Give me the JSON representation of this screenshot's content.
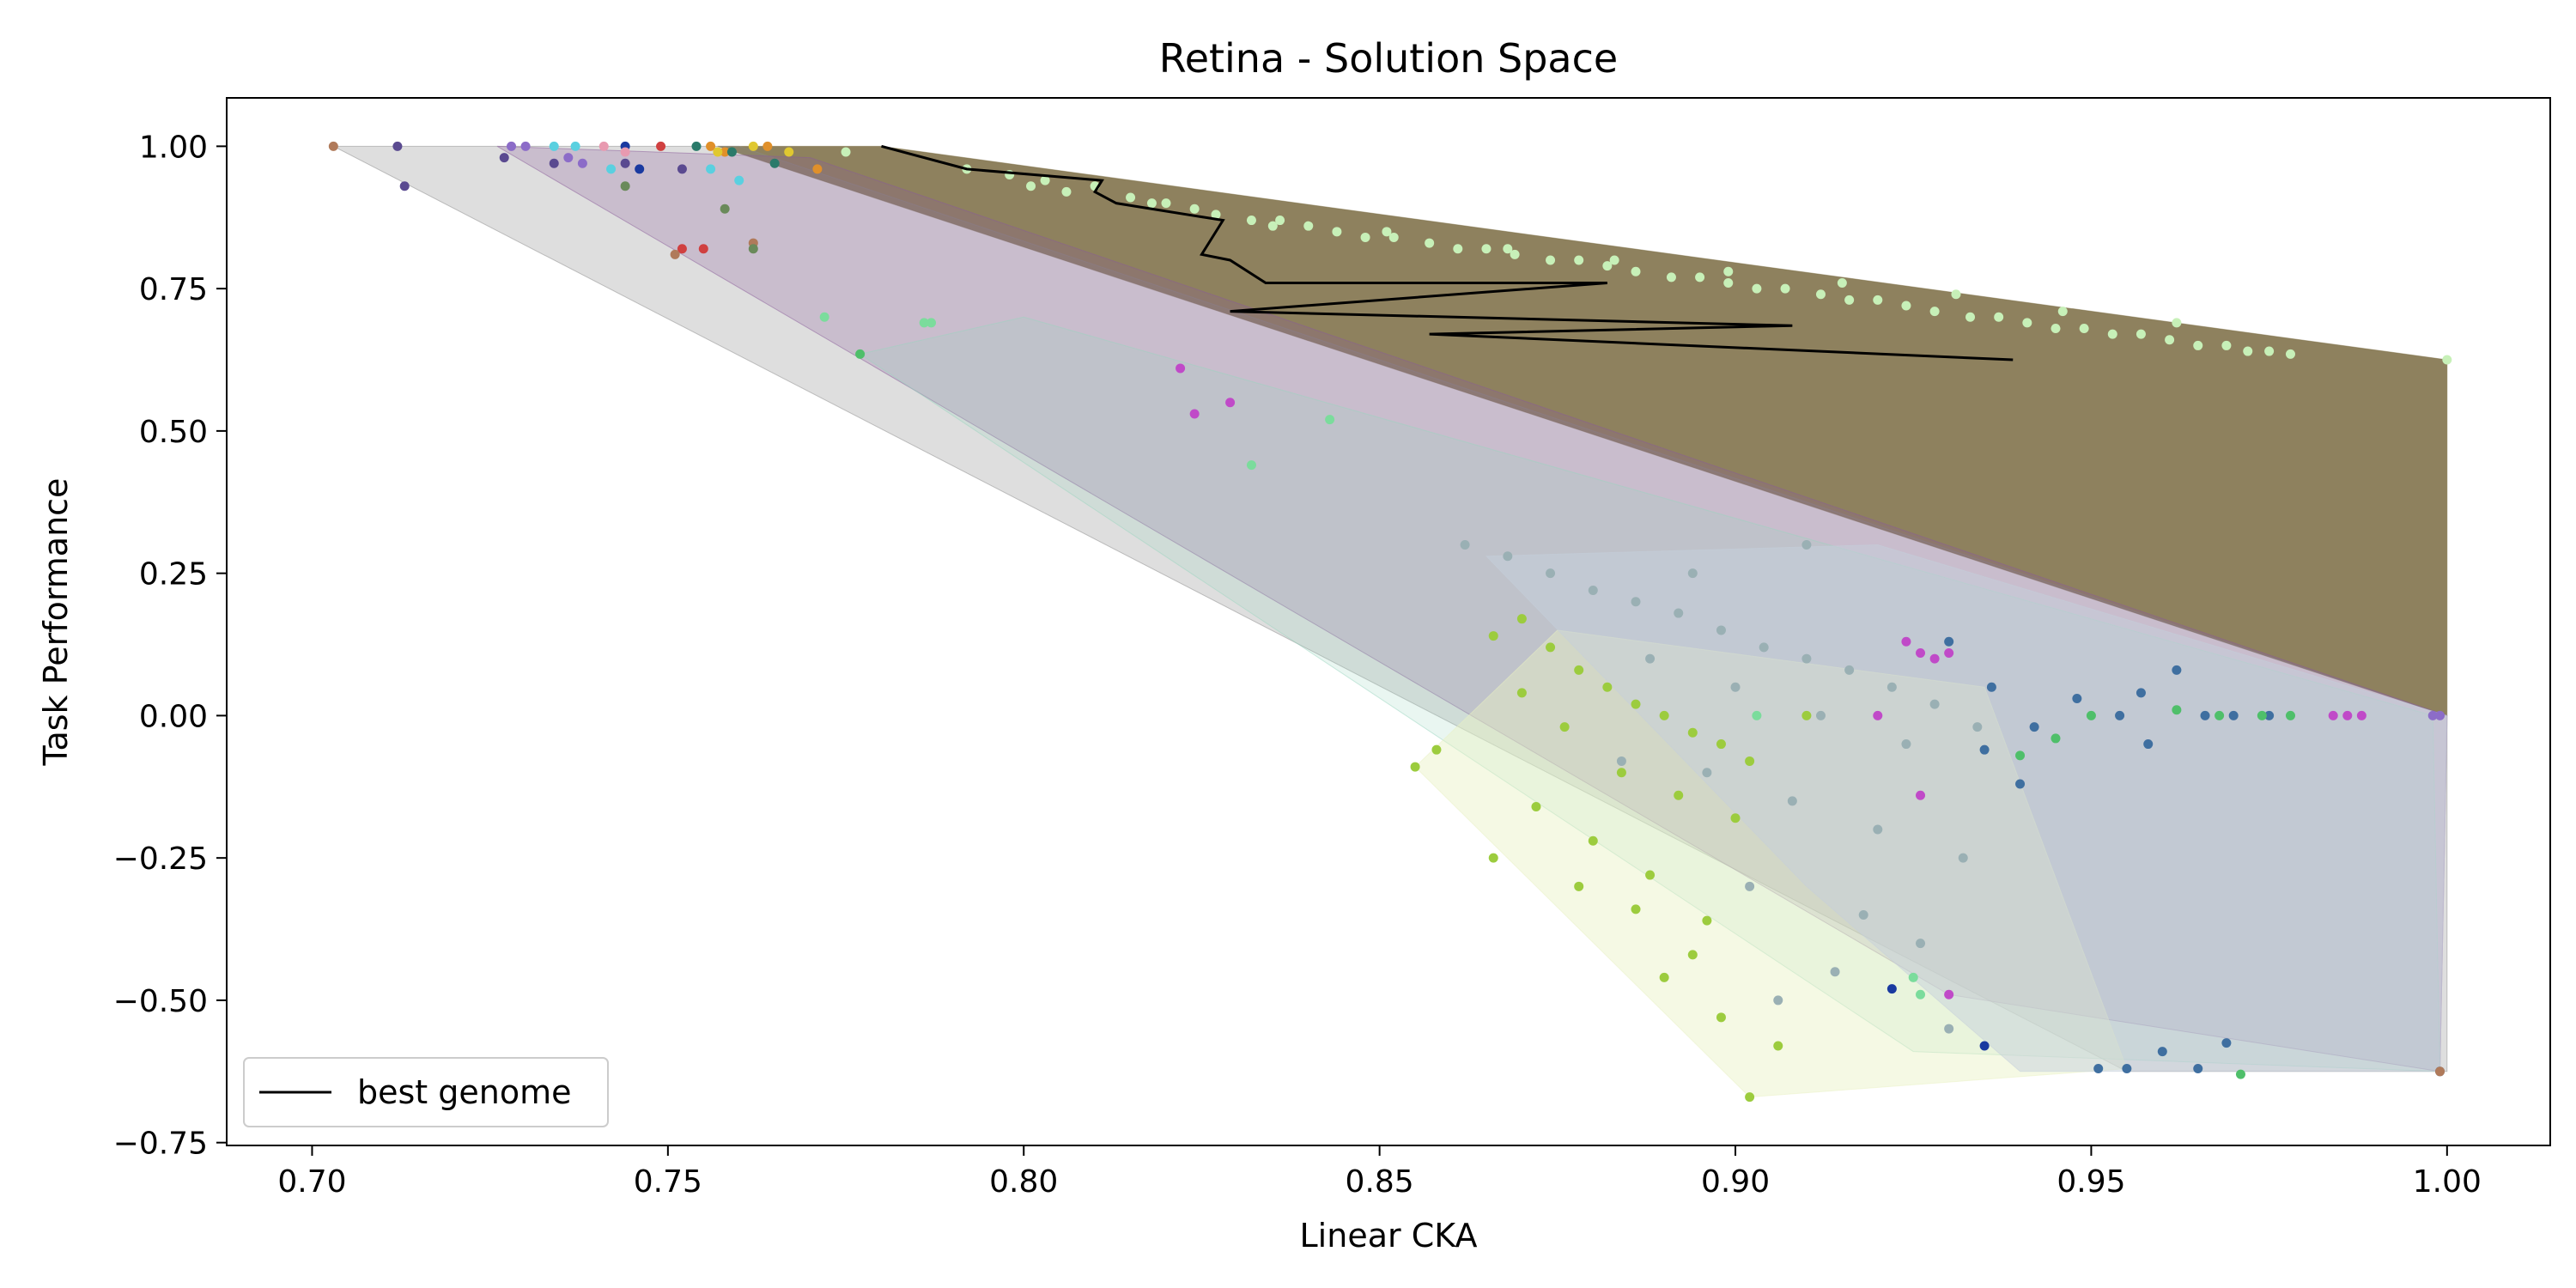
{
  "chart_data": {
    "type": "scatter",
    "title": "Retina - Solution Space",
    "xlabel": "Linear CKA",
    "ylabel": "Task Performance",
    "xlim": [
      0.688,
      1.0145
    ],
    "ylim": [
      -0.755,
      1.085
    ],
    "xticks": [
      0.7,
      0.75,
      0.8,
      0.85,
      0.9,
      0.95,
      1.0
    ],
    "xtick_labels": [
      "0.70",
      "0.75",
      "0.80",
      "0.85",
      "0.90",
      "0.95",
      "1.00"
    ],
    "yticks": [
      1.0,
      0.75,
      0.5,
      0.25,
      0.0,
      -0.25,
      -0.5,
      -0.75
    ],
    "ytick_labels": [
      "1.00",
      "0.75",
      "0.50",
      "0.25",
      "0.00",
      "−0.25",
      "−0.50",
      "−0.75"
    ],
    "grid": false,
    "legend": {
      "position": "lower-left",
      "entries": [
        {
          "label": "best genome",
          "color": "#000000",
          "style": "line"
        }
      ]
    },
    "best_genome": {
      "color": "#000000",
      "x": [
        0.78,
        0.792,
        0.811,
        0.81,
        0.813,
        0.828,
        0.825,
        0.829,
        0.834,
        0.882,
        0.829,
        0.908,
        0.857,
        0.939
      ],
      "y": [
        1.0,
        0.96,
        0.94,
        0.92,
        0.9,
        0.87,
        0.81,
        0.8,
        0.76,
        0.76,
        0.71,
        0.685,
        0.67,
        0.625
      ]
    },
    "hulls": [
      {
        "group": "olive-front",
        "fill": "#7a6b42",
        "opacity": 0.85,
        "x": [
          0.78,
          1.0,
          1.0,
          0.757
        ],
        "y": [
          1.0,
          0.625,
          0.0,
          1.0
        ]
      },
      {
        "group": "gray-large",
        "fill": "#8a8a8a",
        "opacity": 0.28,
        "x": [
          0.703,
          0.76,
          1.0,
          1.0,
          0.955
        ],
        "y": [
          1.0,
          1.0,
          0.0,
          -0.625,
          -0.625
        ]
      },
      {
        "group": "purple",
        "fill": "#8a5b9a",
        "opacity": 0.25,
        "x": [
          0.726,
          0.77,
          1.0,
          0.999,
          0.93
        ],
        "y": [
          1.0,
          0.98,
          0.0,
          -0.625,
          -0.49
        ]
      },
      {
        "group": "mint",
        "fill": "#9ad6c0",
        "opacity": 0.22,
        "x": [
          0.777,
          0.8,
          0.998,
          0.999,
          0.925
        ],
        "y": [
          0.635,
          0.7,
          0.0,
          -0.625,
          -0.59
        ]
      },
      {
        "group": "lime",
        "fill": "#e9f2c4",
        "opacity": 0.45,
        "x": [
          0.855,
          0.875,
          0.935,
          0.955,
          0.902
        ],
        "y": [
          -0.09,
          0.15,
          0.05,
          -0.62,
          -0.67
        ]
      },
      {
        "group": "slate-blue",
        "fill": "#c6cfdc",
        "opacity": 0.5,
        "x": [
          0.865,
          0.92,
          1.0,
          0.999,
          0.94,
          0.91
        ],
        "y": [
          0.28,
          0.3,
          0.0,
          -0.625,
          -0.625,
          -0.3
        ]
      }
    ],
    "series": [
      {
        "color": "#c7f0b8",
        "x": [
          0.792,
          0.798,
          0.803,
          0.806,
          0.81,
          0.815,
          0.82,
          0.824,
          0.827,
          0.832,
          0.836,
          0.84,
          0.844,
          0.848,
          0.852,
          0.857,
          0.861,
          0.865,
          0.869,
          0.874,
          0.878,
          0.882,
          0.886,
          0.891,
          0.895,
          0.899,
          0.903,
          0.907,
          0.912,
          0.916,
          0.92,
          0.924,
          0.928,
          0.933,
          0.937,
          0.941,
          0.945,
          0.949,
          0.953,
          0.957,
          0.961,
          0.965,
          0.969,
          0.972,
          0.975,
          0.978,
          1.0,
          0.775,
          0.801,
          0.818,
          0.835,
          0.851,
          0.868,
          0.883,
          0.899,
          0.915,
          0.931,
          0.946,
          0.962
        ],
        "y": [
          0.96,
          0.95,
          0.94,
          0.92,
          0.93,
          0.91,
          0.9,
          0.89,
          0.88,
          0.87,
          0.87,
          0.86,
          0.85,
          0.84,
          0.84,
          0.83,
          0.82,
          0.82,
          0.81,
          0.8,
          0.8,
          0.79,
          0.78,
          0.77,
          0.77,
          0.76,
          0.75,
          0.75,
          0.74,
          0.73,
          0.73,
          0.72,
          0.71,
          0.7,
          0.7,
          0.69,
          0.68,
          0.68,
          0.67,
          0.67,
          0.66,
          0.65,
          0.65,
          0.64,
          0.64,
          0.635,
          0.625,
          0.99,
          0.93,
          0.9,
          0.86,
          0.85,
          0.82,
          0.8,
          0.78,
          0.76,
          0.74,
          0.71,
          0.69
        ]
      },
      {
        "color": "#9ab0b4",
        "x": [
          0.862,
          0.868,
          0.874,
          0.88,
          0.886,
          0.892,
          0.898,
          0.904,
          0.91,
          0.916,
          0.922,
          0.928,
          0.934,
          0.888,
          0.9,
          0.912,
          0.924,
          0.896,
          0.908,
          0.92,
          0.932,
          0.884,
          0.902,
          0.918,
          0.926,
          0.914,
          0.906,
          0.93,
          0.894,
          0.91
        ],
        "y": [
          0.3,
          0.28,
          0.25,
          0.22,
          0.2,
          0.18,
          0.15,
          0.12,
          0.1,
          0.08,
          0.05,
          0.02,
          -0.02,
          0.1,
          0.05,
          0.0,
          -0.05,
          -0.1,
          -0.15,
          -0.2,
          -0.25,
          -0.08,
          -0.3,
          -0.35,
          -0.4,
          -0.45,
          -0.5,
          -0.55,
          0.25,
          0.3
        ]
      },
      {
        "color": "#9ccc3e",
        "x": [
          0.855,
          0.858,
          0.866,
          0.87,
          0.874,
          0.878,
          0.882,
          0.886,
          0.89,
          0.894,
          0.898,
          0.902,
          0.866,
          0.872,
          0.88,
          0.888,
          0.896,
          0.87,
          0.876,
          0.884,
          0.892,
          0.9,
          0.878,
          0.886,
          0.894,
          0.89,
          0.898,
          0.906,
          0.902,
          0.91
        ],
        "y": [
          -0.09,
          -0.06,
          0.14,
          0.17,
          0.12,
          0.08,
          0.05,
          0.02,
          0.0,
          -0.03,
          -0.05,
          -0.08,
          -0.25,
          -0.16,
          -0.22,
          -0.28,
          -0.36,
          0.04,
          -0.02,
          -0.1,
          -0.14,
          -0.18,
          -0.3,
          -0.34,
          -0.42,
          -0.46,
          -0.53,
          -0.58,
          -0.67,
          0.0
        ]
      },
      {
        "color": "#3f6fa0",
        "x": [
          0.93,
          0.936,
          0.942,
          0.948,
          0.954,
          0.958,
          0.962,
          0.966,
          0.97,
          0.955,
          0.96,
          0.965,
          0.975,
          0.94,
          0.935,
          0.957,
          0.951,
          0.969,
          0.999
        ],
        "y": [
          0.13,
          0.05,
          -0.02,
          0.03,
          0.0,
          -0.05,
          0.08,
          0.0,
          0.0,
          -0.62,
          -0.59,
          -0.62,
          0.0,
          -0.12,
          -0.06,
          0.04,
          -0.62,
          -0.575,
          -0.625
        ]
      },
      {
        "color": "#c04ac8",
        "x": [
          0.822,
          0.824,
          0.829,
          0.924,
          0.926,
          0.928,
          0.93,
          0.926,
          0.92,
          0.984,
          0.986,
          0.988,
          0.93
        ],
        "y": [
          0.61,
          0.53,
          0.55,
          0.13,
          0.11,
          0.1,
          0.11,
          -0.14,
          0.0,
          0.0,
          0.0,
          0.0,
          -0.49
        ]
      },
      {
        "color": "#4fbf6a",
        "x": [
          0.777,
          0.94,
          0.945,
          0.95,
          0.962,
          0.968,
          0.974,
          0.978,
          0.971
        ],
        "y": [
          0.635,
          -0.07,
          -0.04,
          0.0,
          0.01,
          0.0,
          0.0,
          0.0,
          -0.63
        ]
      },
      {
        "color": "#7bdc9c",
        "x": [
          0.772,
          0.786,
          0.787,
          0.832,
          0.843,
          0.903,
          0.925,
          0.926
        ],
        "y": [
          0.7,
          0.69,
          0.69,
          0.44,
          0.52,
          0.0,
          -0.46,
          -0.49
        ]
      },
      {
        "color": "#5a4a90",
        "x": [
          0.712,
          0.713,
          0.727,
          0.734,
          0.752,
          0.744
        ],
        "y": [
          1.0,
          0.93,
          0.98,
          0.97,
          0.96,
          0.97
        ]
      },
      {
        "color": "#8c6cc8",
        "x": [
          0.728,
          0.73,
          0.736,
          0.738,
          0.998,
          0.999
        ],
        "y": [
          1.0,
          1.0,
          0.98,
          0.97,
          0.0,
          0.0
        ]
      },
      {
        "color": "#5ad0e0",
        "x": [
          0.734,
          0.737,
          0.742,
          0.756,
          0.76
        ],
        "y": [
          1.0,
          1.0,
          0.96,
          0.96,
          0.94
        ]
      },
      {
        "color": "#d04040",
        "x": [
          0.749,
          0.752,
          0.755
        ],
        "y": [
          1.0,
          0.82,
          0.82
        ]
      },
      {
        "color": "#1a3aa0",
        "x": [
          0.744,
          0.746,
          0.922,
          0.935
        ],
        "y": [
          1.0,
          0.96,
          -0.48,
          -0.58
        ]
      },
      {
        "color": "#b07a5a",
        "x": [
          0.703,
          0.751,
          0.762,
          0.999
        ],
        "y": [
          1.0,
          0.81,
          0.83,
          -0.625
        ]
      },
      {
        "color": "#e0902a",
        "x": [
          0.756,
          0.758,
          0.764,
          0.771
        ],
        "y": [
          1.0,
          0.99,
          1.0,
          0.96
        ]
      },
      {
        "color": "#e0c830",
        "x": [
          0.757,
          0.762,
          0.767
        ],
        "y": [
          0.99,
          1.0,
          0.99
        ]
      },
      {
        "color": "#e89ab0",
        "x": [
          0.741,
          0.744
        ],
        "y": [
          1.0,
          0.99
        ]
      },
      {
        "color": "#2a7a6a",
        "x": [
          0.754,
          0.759,
          0.765
        ],
        "y": [
          1.0,
          0.99,
          0.97
        ]
      },
      {
        "color": "#6a8a5a",
        "x": [
          0.744,
          0.758,
          0.762
        ],
        "y": [
          0.93,
          0.89,
          0.82
        ]
      }
    ]
  }
}
